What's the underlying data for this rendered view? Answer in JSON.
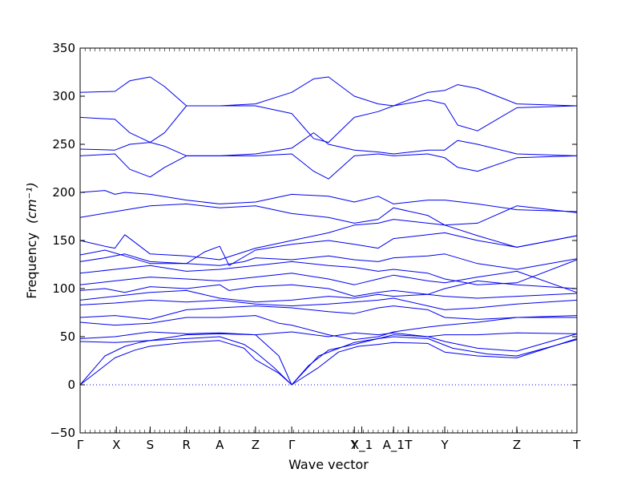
{
  "chart_data": {
    "type": "line",
    "xlabel": "Wave vector",
    "ylabel_text": "Frequency",
    "ylabel_unit": "(cm⁻¹)",
    "ylim": [
      -50,
      350
    ],
    "yticks": [
      -50,
      0,
      50,
      100,
      150,
      200,
      250,
      300,
      350
    ],
    "xlim": [
      0,
      1
    ],
    "high_symmetry_points": [
      {
        "label": "Γ",
        "x": 0.0
      },
      {
        "label": "X",
        "x": 0.073
      },
      {
        "label": "S",
        "x": 0.141
      },
      {
        "label": "R",
        "x": 0.214
      },
      {
        "label": "A",
        "x": 0.281
      },
      {
        "label": "Z",
        "x": 0.353
      },
      {
        "label": "Γ",
        "x": 0.426
      },
      {
        "label": "Y",
        "x": 0.552
      },
      {
        "label": "X_1",
        "x": 0.567
      },
      {
        "label": "A_1",
        "x": 0.631
      },
      {
        "label": "T",
        "x": 0.661
      },
      {
        "label": "Y",
        "x": 0.734
      },
      {
        "label": "Z",
        "x": 0.879
      },
      {
        "label": "T",
        "x": 1.0
      }
    ],
    "zero_line": {
      "y": 0,
      "style": "dotted"
    },
    "line_color": "#0000ee",
    "series": [
      {
        "x": [
          0,
          0.07,
          0.11,
          0.14,
          0.21,
          0.28,
          0.33,
          0.353,
          0.4,
          0.426,
          0.48,
          0.52,
          0.56,
          0.6,
          0.631,
          0.7,
          0.734,
          0.8,
          0.879,
          1.0
        ],
        "y": [
          0,
          28,
          36,
          40,
          44,
          46,
          38,
          26,
          12,
          0,
          18,
          34,
          40,
          42,
          44,
          43,
          34,
          30,
          28,
          48
        ]
      },
      {
        "x": [
          0,
          0.05,
          0.09,
          0.12,
          0.141,
          0.214,
          0.281,
          0.33,
          0.353,
          0.39,
          0.426,
          0.48,
          0.552,
          0.6,
          0.631,
          0.7,
          0.75,
          0.82,
          0.879,
          1.0
        ],
        "y": [
          0,
          30,
          40,
          44,
          46,
          48,
          50,
          42,
          34,
          18,
          0,
          30,
          44,
          48,
          50,
          48,
          38,
          32,
          30,
          47
        ]
      },
      {
        "x": [
          0,
          0.07,
          0.141,
          0.214,
          0.281,
          0.353,
          0.4,
          0.426,
          0.46,
          0.5,
          0.552,
          0.6,
          0.631,
          0.7,
          0.734,
          0.8,
          0.879,
          1.0
        ],
        "y": [
          45,
          44,
          46,
          52,
          53,
          52,
          30,
          0,
          20,
          36,
          42,
          48,
          52,
          50,
          45,
          38,
          35,
          53
        ]
      },
      {
        "x": [
          0,
          0.07,
          0.141,
          0.214,
          0.281,
          0.353,
          0.426,
          0.5,
          0.552,
          0.6,
          0.631,
          0.7,
          0.734,
          0.8,
          0.879,
          1.0
        ],
        "y": [
          48,
          50,
          55,
          53,
          54,
          52,
          55,
          50,
          54,
          52,
          54,
          50,
          52,
          52,
          54,
          53
        ]
      },
      {
        "x": [
          0,
          0.07,
          0.141,
          0.214,
          0.281,
          0.353,
          0.4,
          0.426,
          0.5,
          0.552,
          0.6,
          0.631,
          0.7,
          0.734,
          0.8,
          0.879,
          1.0
        ],
        "y": [
          65,
          62,
          64,
          70,
          70,
          72,
          64,
          62,
          52,
          47,
          50,
          55,
          60,
          62,
          65,
          70,
          70
        ]
      },
      {
        "x": [
          0,
          0.07,
          0.141,
          0.214,
          0.281,
          0.353,
          0.426,
          0.5,
          0.552,
          0.6,
          0.631,
          0.7,
          0.734,
          0.8,
          0.879,
          1.0
        ],
        "y": [
          70,
          72,
          68,
          78,
          80,
          82,
          80,
          76,
          74,
          80,
          82,
          78,
          70,
          68,
          70,
          72
        ]
      },
      {
        "x": [
          0,
          0.07,
          0.141,
          0.214,
          0.281,
          0.353,
          0.426,
          0.5,
          0.552,
          0.6,
          0.631,
          0.7,
          0.734,
          0.8,
          0.879,
          1.0
        ],
        "y": [
          83,
          85,
          88,
          86,
          88,
          84,
          82,
          84,
          86,
          88,
          90,
          82,
          78,
          80,
          84,
          88
        ]
      },
      {
        "x": [
          0,
          0.07,
          0.141,
          0.214,
          0.281,
          0.353,
          0.426,
          0.5,
          0.552,
          0.6,
          0.631,
          0.7,
          0.734,
          0.8,
          0.879,
          1.0
        ],
        "y": [
          88,
          92,
          96,
          98,
          90,
          86,
          88,
          92,
          90,
          94,
          92,
          94,
          92,
          90,
          92,
          95
        ]
      },
      {
        "x": [
          0,
          0.05,
          0.09,
          0.141,
          0.214,
          0.281,
          0.3,
          0.353,
          0.426,
          0.5,
          0.552,
          0.6,
          0.631,
          0.7,
          0.734,
          0.8,
          0.879,
          1.0
        ],
        "y": [
          98,
          100,
          96,
          102,
          100,
          104,
          98,
          102,
          104,
          100,
          92,
          96,
          98,
          94,
          100,
          108,
          104,
          100
        ]
      },
      {
        "x": [
          0,
          0.07,
          0.141,
          0.214,
          0.281,
          0.353,
          0.426,
          0.5,
          0.552,
          0.6,
          0.631,
          0.7,
          0.734,
          0.8,
          0.879,
          1.0
        ],
        "y": [
          104,
          108,
          112,
          110,
          108,
          112,
          116,
          110,
          104,
          110,
          114,
          108,
          106,
          112,
          118,
          96
        ]
      },
      {
        "x": [
          0,
          0.07,
          0.141,
          0.214,
          0.281,
          0.353,
          0.426,
          0.5,
          0.552,
          0.6,
          0.631,
          0.7,
          0.734,
          0.8,
          0.879,
          1.0
        ],
        "y": [
          116,
          120,
          124,
          118,
          120,
          124,
          128,
          124,
          122,
          118,
          120,
          116,
          110,
          104,
          106,
          130
        ]
      },
      {
        "x": [
          0,
          0.05,
          0.09,
          0.141,
          0.214,
          0.281,
          0.33,
          0.353,
          0.426,
          0.5,
          0.552,
          0.6,
          0.631,
          0.7,
          0.734,
          0.8,
          0.879,
          1.0
        ],
        "y": [
          128,
          132,
          136,
          128,
          126,
          124,
          128,
          132,
          130,
          134,
          130,
          128,
          132,
          134,
          136,
          126,
          120,
          131
        ]
      },
      {
        "x": [
          0,
          0.05,
          0.09,
          0.141,
          0.214,
          0.25,
          0.281,
          0.3,
          0.353,
          0.426,
          0.5,
          0.552,
          0.6,
          0.631,
          0.7,
          0.734,
          0.8,
          0.879,
          1.0
        ],
        "y": [
          135,
          140,
          134,
          126,
          126,
          138,
          144,
          124,
          140,
          146,
          150,
          146,
          142,
          152,
          156,
          158,
          150,
          143,
          155
        ]
      },
      {
        "x": [
          0,
          0.05,
          0.07,
          0.09,
          0.141,
          0.214,
          0.281,
          0.353,
          0.426,
          0.5,
          0.552,
          0.6,
          0.631,
          0.7,
          0.734,
          0.8,
          0.879,
          1.0
        ],
        "y": [
          150,
          144,
          142,
          156,
          136,
          134,
          130,
          142,
          150,
          158,
          166,
          168,
          172,
          168,
          166,
          155,
          143,
          155
        ]
      },
      {
        "x": [
          0,
          0.07,
          0.141,
          0.214,
          0.281,
          0.353,
          0.426,
          0.5,
          0.552,
          0.6,
          0.631,
          0.7,
          0.734,
          0.8,
          0.879,
          1.0
        ],
        "y": [
          174,
          180,
          186,
          188,
          184,
          186,
          178,
          174,
          168,
          172,
          184,
          176,
          166,
          168,
          186,
          179
        ]
      },
      {
        "x": [
          0,
          0.05,
          0.07,
          0.09,
          0.141,
          0.214,
          0.281,
          0.353,
          0.426,
          0.5,
          0.552,
          0.6,
          0.631,
          0.7,
          0.734,
          0.8,
          0.879,
          1.0
        ],
        "y": [
          200,
          202,
          198,
          200,
          198,
          192,
          188,
          190,
          198,
          196,
          190,
          196,
          188,
          192,
          192,
          188,
          182,
          180
        ]
      },
      {
        "x": [
          0,
          0.07,
          0.1,
          0.141,
          0.17,
          0.214,
          0.281,
          0.353,
          0.426,
          0.47,
          0.5,
          0.552,
          0.6,
          0.631,
          0.7,
          0.734,
          0.76,
          0.8,
          0.879,
          1.0
        ],
        "y": [
          238,
          240,
          224,
          216,
          226,
          238,
          238,
          238,
          240,
          222,
          214,
          238,
          240,
          238,
          240,
          236,
          226,
          222,
          236,
          238
        ]
      },
      {
        "x": [
          0,
          0.07,
          0.1,
          0.141,
          0.17,
          0.214,
          0.281,
          0.353,
          0.426,
          0.47,
          0.5,
          0.552,
          0.6,
          0.631,
          0.7,
          0.734,
          0.76,
          0.8,
          0.879,
          1.0
        ],
        "y": [
          245,
          244,
          250,
          252,
          248,
          238,
          238,
          240,
          246,
          262,
          250,
          244,
          242,
          240,
          244,
          244,
          254,
          250,
          240,
          238
        ]
      },
      {
        "x": [
          0,
          0.07,
          0.1,
          0.141,
          0.17,
          0.214,
          0.281,
          0.353,
          0.426,
          0.47,
          0.5,
          0.552,
          0.6,
          0.631,
          0.7,
          0.734,
          0.76,
          0.8,
          0.879,
          1.0
        ],
        "y": [
          278,
          276,
          262,
          252,
          262,
          290,
          290,
          290,
          282,
          256,
          252,
          278,
          284,
          290,
          296,
          292,
          270,
          264,
          288,
          290
        ]
      },
      {
        "x": [
          0,
          0.07,
          0.1,
          0.141,
          0.17,
          0.214,
          0.281,
          0.353,
          0.426,
          0.47,
          0.5,
          0.552,
          0.6,
          0.631,
          0.7,
          0.734,
          0.76,
          0.8,
          0.879,
          1.0
        ],
        "y": [
          304,
          305,
          316,
          320,
          310,
          290,
          290,
          292,
          304,
          318,
          320,
          300,
          292,
          290,
          304,
          306,
          312,
          308,
          292,
          290
        ]
      }
    ]
  }
}
